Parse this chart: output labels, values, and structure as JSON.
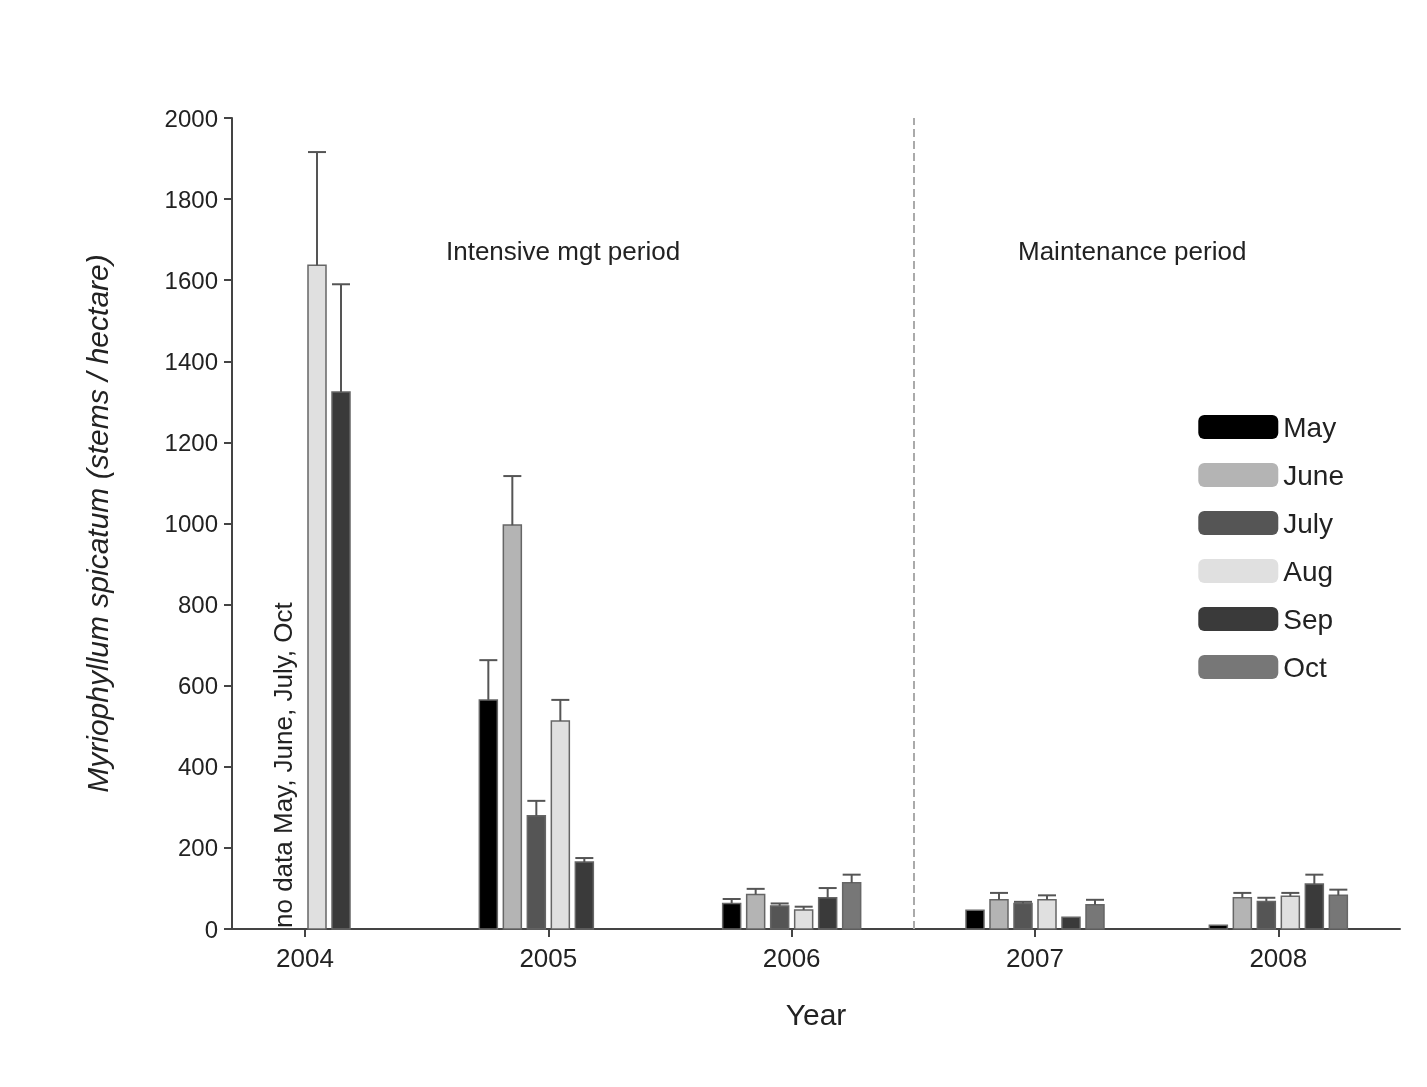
{
  "chart_data": {
    "type": "bar",
    "xlabel": "Year",
    "ylabel": "Myriophyllum spicatum (stems / hectare)",
    "x": [
      2004,
      2005,
      2006,
      2007,
      2008
    ],
    "xlim": [
      2003.7,
      2008.5
    ],
    "xticks": [
      2004,
      2005,
      2006,
      2007,
      2008
    ],
    "ylim": [
      0,
      2000
    ],
    "yticks": [
      0,
      200,
      400,
      600,
      800,
      1000,
      1200,
      1400,
      1600,
      1800,
      2000
    ],
    "series": [
      {
        "name": "May",
        "color": "#000000",
        "values": [
          null,
          565,
          63,
          46,
          9
        ],
        "errors": [
          null,
          [
            565,
            663
          ],
          [
            63,
            74
          ],
          null,
          null
        ]
      },
      {
        "name": "June",
        "color": "#b4b4b4",
        "values": [
          null,
          996,
          85,
          72,
          77
        ],
        "errors": [
          null,
          [
            996,
            1117
          ],
          [
            85,
            99
          ],
          [
            72,
            89
          ],
          [
            77,
            89
          ]
        ]
      },
      {
        "name": "July",
        "color": "#555555",
        "values": [
          null,
          279,
          57,
          63,
          68
        ],
        "errors": [
          null,
          [
            279,
            316
          ],
          [
            57,
            63
          ],
          [
            63,
            67
          ],
          [
            68,
            77
          ]
        ]
      },
      {
        "name": "Aug",
        "color": "#e0e0e0",
        "values": [
          1637,
          513,
          47,
          72,
          81
        ],
        "errors": [
          [
            1637,
            1916
          ],
          [
            513,
            565
          ],
          [
            47,
            55
          ],
          [
            72,
            83
          ],
          [
            81,
            89
          ]
        ]
      },
      {
        "name": "Sep",
        "color": "#3a3a3a",
        "values": [
          1324,
          165,
          77,
          29,
          111
        ],
        "errors": [
          [
            1324,
            1590
          ],
          [
            165,
            175
          ],
          [
            77,
            101
          ],
          null,
          [
            111,
            134
          ]
        ]
      },
      {
        "name": "Oct",
        "color": "#777777",
        "values": [
          null,
          null,
          114,
          60,
          83
        ],
        "errors": [
          null,
          null,
          [
            114,
            134
          ],
          [
            60,
            72
          ],
          [
            83,
            97
          ]
        ]
      }
    ],
    "ref_lines": [
      {
        "axis": "x",
        "value": 2006.5,
        "color": "#aaaaaa",
        "line_style": "dashed"
      }
    ],
    "annotations": [
      "Intensive mgt period",
      "Maintenance period",
      "no data May, June, July, Oct"
    ],
    "legend": "right",
    "grid": false
  }
}
